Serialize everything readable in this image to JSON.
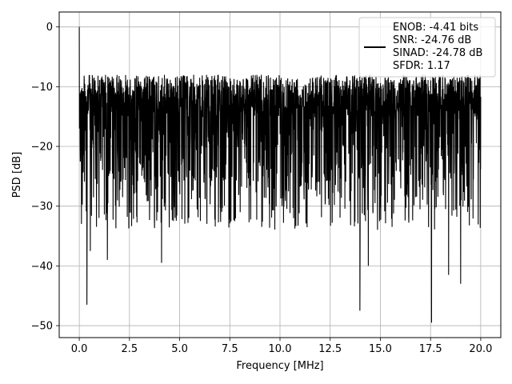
{
  "chart_data": {
    "type": "line",
    "xlabel": "Frequency [MHz]",
    "ylabel": "PSD [dB]",
    "xlim": [
      -1.0,
      21.0
    ],
    "ylim": [
      -52.0,
      2.5
    ],
    "x_ticks": [
      0.0,
      2.5,
      5.0,
      7.5,
      10.0,
      12.5,
      15.0,
      17.5,
      20.0
    ],
    "x_tick_labels": [
      "0.0",
      "2.5",
      "5.0",
      "7.5",
      "10.0",
      "12.5",
      "15.0",
      "17.5",
      "20.0"
    ],
    "y_ticks": [
      0,
      -10,
      -20,
      -30,
      -40,
      -50
    ],
    "y_tick_labels": [
      "0",
      "−10",
      "−20",
      "−30",
      "−40",
      "−50"
    ],
    "grid": true,
    "legend_position": "top-right",
    "line_color": "#000000",
    "series": [
      {
        "legend_lines": [
          "ENOB: -4.41 bits",
          "SNR: -24.76 dB",
          "SINAD: -24.78 dB",
          "SFDR: 1.17"
        ],
        "x_range": [
          0.0,
          20.0
        ],
        "peak": {
          "x": 0.0,
          "y": 0.0
        },
        "noise_floor_band_db": [
          -26,
          -8
        ],
        "deep_dips": [
          {
            "x": 0.38,
            "y": -46.5
          },
          {
            "x": 13.98,
            "y": -47.5
          },
          {
            "x": 17.55,
            "y": -49.5
          },
          {
            "x": 19.0,
            "y": -43.0
          },
          {
            "x": 18.4,
            "y": -41.5
          },
          {
            "x": 14.4,
            "y": -40.0
          },
          {
            "x": 4.1,
            "y": -39.5
          },
          {
            "x": 1.4,
            "y": -39.0
          },
          {
            "x": 0.55,
            "y": -37.5
          }
        ]
      }
    ]
  }
}
